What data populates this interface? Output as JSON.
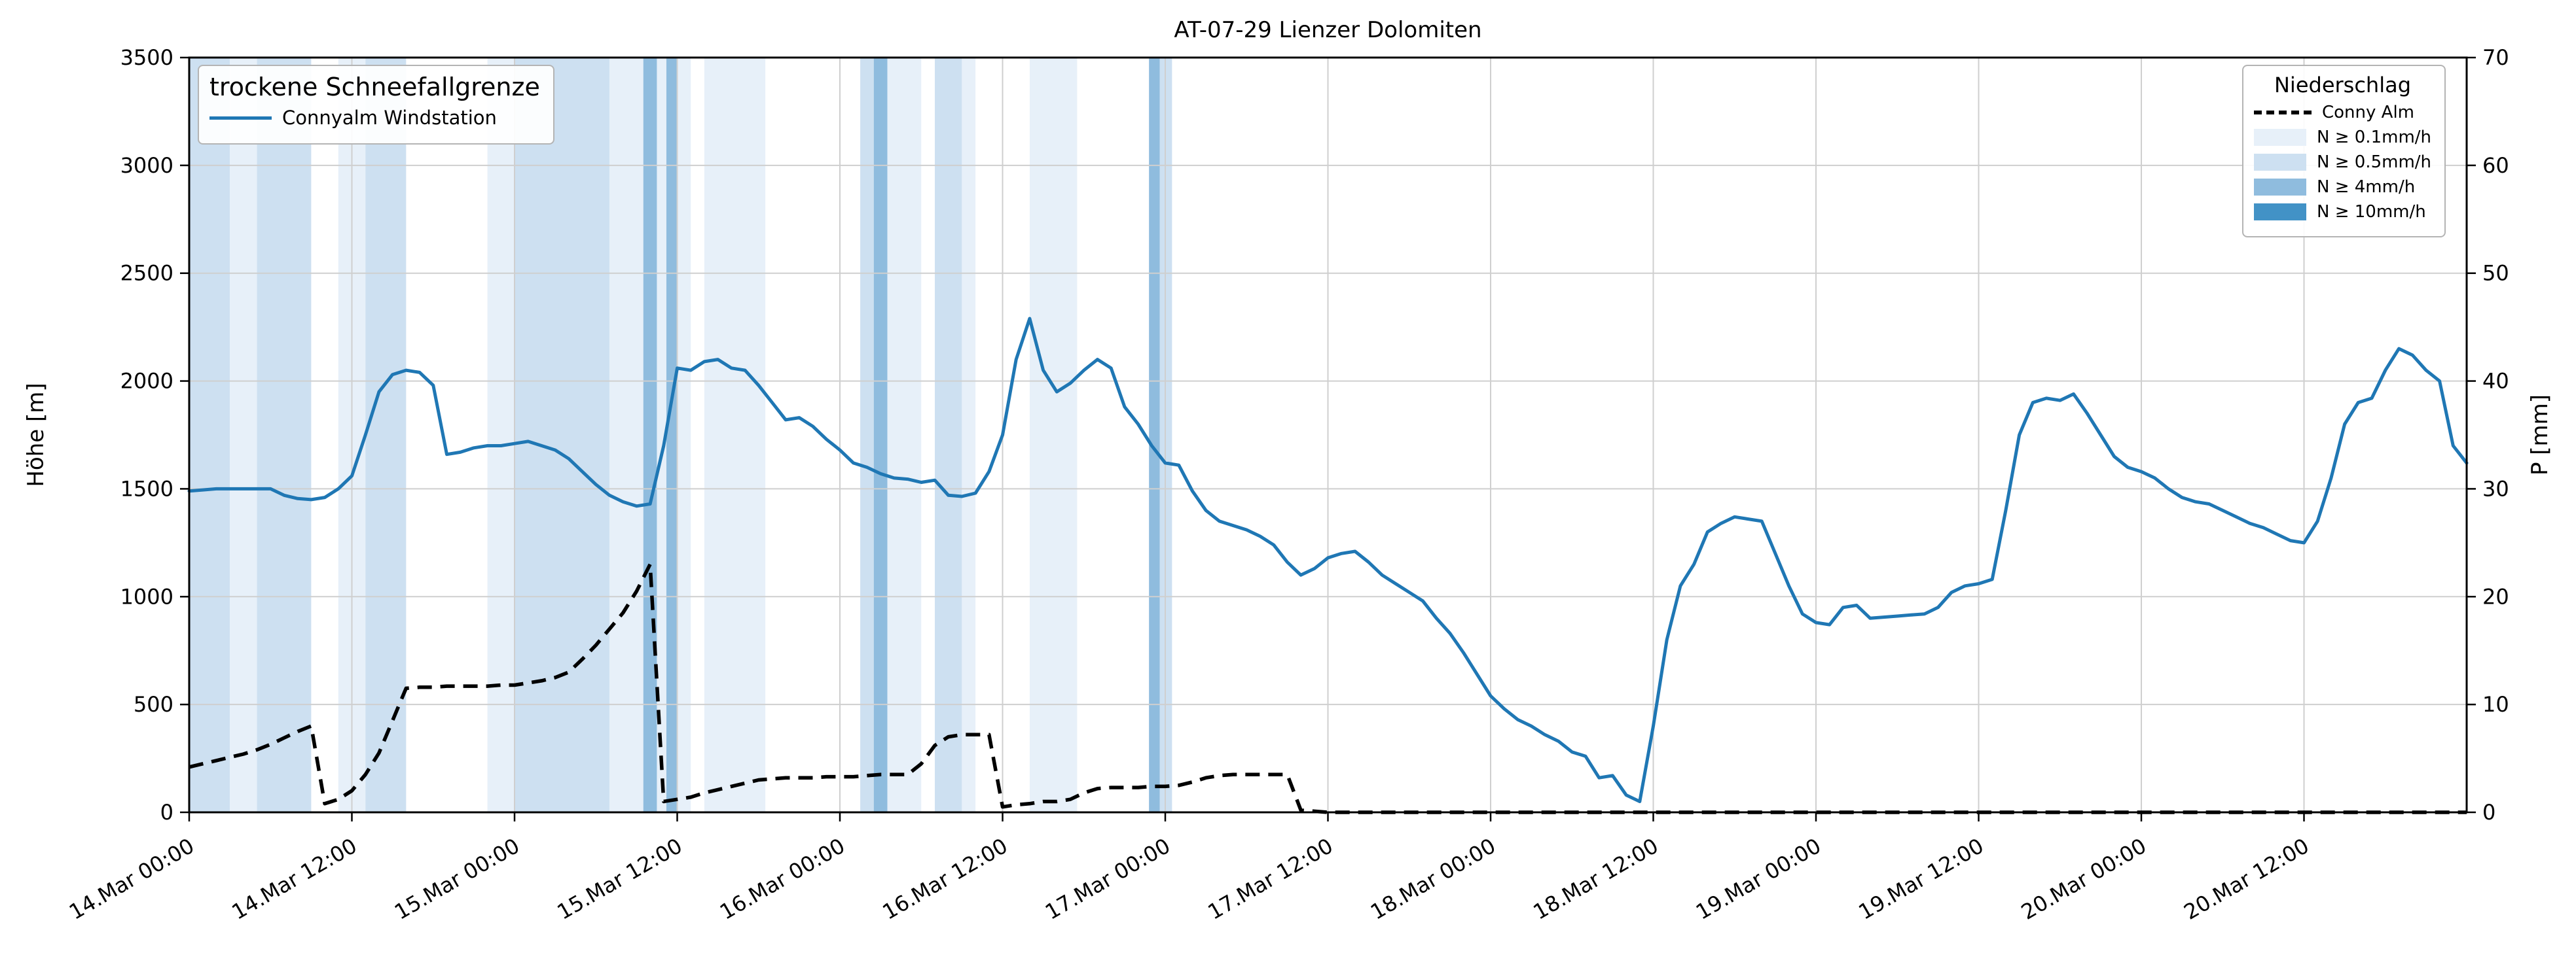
{
  "title": "AT-07-29 Lienzer Dolomiten",
  "y_left": {
    "label": "Höhe [m]",
    "ticks": [
      0,
      500,
      1000,
      1500,
      2000,
      2500,
      3000,
      3500
    ],
    "min": 0,
    "max": 3500
  },
  "y_right": {
    "label": "P [mm]",
    "ticks": [
      0,
      10,
      20,
      30,
      40,
      50,
      60,
      70
    ],
    "min": 0,
    "max": 70
  },
  "x_axis": {
    "tick_labels": [
      "14.Mar 00:00",
      "14.Mar 12:00",
      "15.Mar 00:00",
      "15.Mar 12:00",
      "16.Mar 00:00",
      "16.Mar 12:00",
      "17.Mar 00:00",
      "17.Mar 12:00",
      "18.Mar 00:00",
      "18.Mar 12:00",
      "19.Mar 00:00",
      "19.Mar 12:00",
      "20.Mar 00:00",
      "20.Mar 12:00"
    ],
    "tick_hours": [
      0,
      12,
      24,
      36,
      48,
      60,
      72,
      84,
      96,
      108,
      120,
      132,
      144,
      156
    ],
    "min_hour": 0,
    "max_hour": 168
  },
  "legend_left": {
    "title": "trockene Schneefallgrenze",
    "entries": [
      {
        "label": "Connyalm Windstation",
        "sample": "solid-line",
        "color": "#1f77b4"
      }
    ]
  },
  "legend_right": {
    "title": "Niederschlag",
    "entries": [
      {
        "label": "Conny Alm",
        "sample": "dashed-line",
        "color": "#000000"
      },
      {
        "label": "N ≥ 0.1mm/h",
        "sample": "patch",
        "level": "0.1"
      },
      {
        "label": "N ≥ 0.5mm/h",
        "sample": "patch",
        "level": "0.5"
      },
      {
        "label": "N ≥ 4mm/h",
        "sample": "patch",
        "level": "4"
      },
      {
        "label": "N ≥ 10mm/h",
        "sample": "patch",
        "level": "10"
      }
    ]
  },
  "chart_data": {
    "type": "line",
    "title": "AT-07-29 Lienzer Dolomiten",
    "xlabel": "",
    "x_unit": "hours since 14.Mar 00:00",
    "x_step_hours": 1,
    "xlim_hours": [
      0,
      168
    ],
    "ylim_left": [
      0,
      3500
    ],
    "ylim_right": [
      0,
      70
    ],
    "grid": true,
    "legend_position": [
      "upper left",
      "upper right"
    ],
    "series": [
      {
        "name": "Connyalm Windstation",
        "axis": "left",
        "units": "m",
        "color": "#1f77b4",
        "style": "solid",
        "values": [
          1490,
          1495,
          1500,
          1500,
          1500,
          1500,
          1500,
          1470,
          1455,
          1450,
          1460,
          1500,
          1560,
          1750,
          1950,
          2030,
          2050,
          2040,
          1980,
          1660,
          1670,
          1690,
          1700,
          1700,
          1710,
          1720,
          1700,
          1680,
          1640,
          1580,
          1520,
          1470,
          1440,
          1420,
          1430,
          1700,
          2060,
          2050,
          2090,
          2100,
          2060,
          2050,
          1980,
          1900,
          1820,
          1830,
          1790,
          1730,
          1680,
          1620,
          1600,
          1570,
          1550,
          1545,
          1530,
          1540,
          1470,
          1465,
          1480,
          1580,
          1750,
          2100,
          2290,
          2050,
          1950,
          1990,
          2050,
          2100,
          2060,
          1880,
          1800,
          1700,
          1620,
          1610,
          1490,
          1400,
          1350,
          1330,
          1310,
          1280,
          1240,
          1160,
          1100,
          1130,
          1180,
          1200,
          1210,
          1160,
          1100,
          1060,
          1020,
          980,
          900,
          830,
          740,
          640,
          540,
          480,
          430,
          400,
          360,
          330,
          280,
          260,
          160,
          170,
          80,
          50,
          400,
          800,
          1050,
          1150,
          1300,
          1340,
          1370,
          1360,
          1350,
          1200,
          1050,
          920,
          880,
          870,
          950,
          960,
          900,
          905,
          910,
          915,
          920,
          950,
          1020,
          1050,
          1060,
          1080,
          1400,
          1750,
          1900,
          1920,
          1910,
          1940,
          1850,
          1750,
          1650,
          1600,
          1580,
          1550,
          1500,
          1460,
          1440,
          1430,
          1400,
          1370,
          1340,
          1320,
          1290,
          1260,
          1250,
          1350,
          1550,
          1800,
          1900,
          1920,
          2050,
          2150,
          2120,
          2050,
          2000,
          1700,
          1620
        ]
      },
      {
        "name": "Conny Alm",
        "axis": "right",
        "units": "mm",
        "color": "#000000",
        "style": "dashed",
        "values": [
          4.2,
          4.5,
          4.8,
          5.1,
          5.4,
          5.8,
          6.3,
          6.9,
          7.5,
          8.0,
          0.8,
          1.2,
          2.0,
          3.5,
          5.5,
          8.5,
          11.5,
          11.6,
          11.6,
          11.7,
          11.7,
          11.7,
          11.7,
          11.8,
          11.8,
          12.0,
          12.2,
          12.5,
          13.0,
          14.2,
          15.5,
          17.0,
          18.5,
          20.5,
          23.0,
          1.0,
          1.2,
          1.4,
          1.8,
          2.1,
          2.4,
          2.7,
          3.0,
          3.1,
          3.2,
          3.2,
          3.2,
          3.3,
          3.3,
          3.3,
          3.4,
          3.5,
          3.5,
          3.5,
          4.5,
          6.2,
          7.0,
          7.2,
          7.2,
          7.2,
          0.5,
          0.7,
          0.8,
          1.0,
          1.0,
          1.2,
          1.8,
          2.2,
          2.3,
          2.3,
          2.3,
          2.4,
          2.4,
          2.5,
          2.8,
          3.2,
          3.4,
          3.5,
          3.5,
          3.5,
          3.5,
          3.5,
          0.2,
          0.1,
          0,
          0,
          0,
          0,
          0,
          0,
          0,
          0,
          0,
          0,
          0,
          0,
          0,
          0,
          0,
          0,
          0,
          0,
          0,
          0,
          0,
          0,
          0,
          0,
          0,
          0,
          0,
          0,
          0,
          0,
          0,
          0,
          0,
          0,
          0,
          0,
          0,
          0,
          0,
          0,
          0,
          0,
          0,
          0,
          0,
          0,
          0,
          0,
          0,
          0,
          0,
          0,
          0,
          0,
          0,
          0,
          0,
          0,
          0,
          0,
          0,
          0,
          0,
          0,
          0,
          0,
          0,
          0,
          0,
          0,
          0,
          0,
          0,
          0,
          0,
          0,
          0,
          0,
          0,
          0,
          0,
          0,
          0,
          0,
          0
        ]
      }
    ],
    "precip_bands": [
      {
        "start_h": 0,
        "end_h": 3,
        "level": "0.5"
      },
      {
        "start_h": 3,
        "end_h": 5,
        "level": "0.1"
      },
      {
        "start_h": 5,
        "end_h": 9,
        "level": "0.5"
      },
      {
        "start_h": 11,
        "end_h": 13,
        "level": "0.1"
      },
      {
        "start_h": 13,
        "end_h": 16,
        "level": "0.5"
      },
      {
        "start_h": 22,
        "end_h": 24,
        "level": "0.1"
      },
      {
        "start_h": 24,
        "end_h": 31,
        "level": "0.5"
      },
      {
        "start_h": 31,
        "end_h": 33.5,
        "level": "0.1"
      },
      {
        "start_h": 33.5,
        "end_h": 34.5,
        "level": "4"
      },
      {
        "start_h": 34.5,
        "end_h": 35.2,
        "level": "0.1"
      },
      {
        "start_h": 35.2,
        "end_h": 36,
        "level": "4"
      },
      {
        "start_h": 36,
        "end_h": 37,
        "level": "0.1"
      },
      {
        "start_h": 38,
        "end_h": 42.5,
        "level": "0.1"
      },
      {
        "start_h": 49.5,
        "end_h": 50.5,
        "level": "0.5"
      },
      {
        "start_h": 50.5,
        "end_h": 51.5,
        "level": "4"
      },
      {
        "start_h": 51.5,
        "end_h": 54,
        "level": "0.1"
      },
      {
        "start_h": 55,
        "end_h": 57,
        "level": "0.5"
      },
      {
        "start_h": 57,
        "end_h": 58,
        "level": "0.1"
      },
      {
        "start_h": 62,
        "end_h": 65.5,
        "level": "0.1"
      },
      {
        "start_h": 70.8,
        "end_h": 71.6,
        "level": "4"
      },
      {
        "start_h": 71.6,
        "end_h": 72.5,
        "level": "0.5"
      }
    ],
    "band_colors": {
      "0.1": "#e7f0f9",
      "0.5": "#cde0f1",
      "4": "#8fbcde",
      "10": "#4292c6"
    },
    "line_color": "#1f77b4",
    "grid_color": "#cfcfcf"
  }
}
